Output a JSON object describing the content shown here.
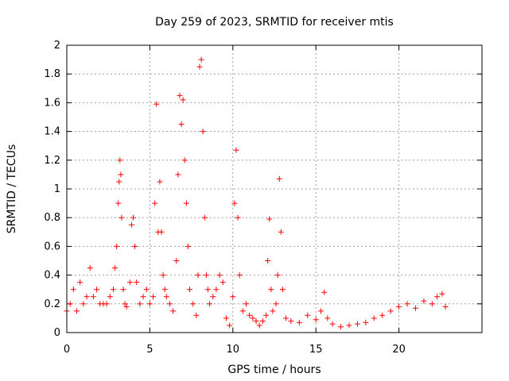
{
  "chart_data": {
    "type": "scatter",
    "title": "Day 259 of 2023, SRMTID for receiver mtis",
    "xlabel": "GPS time / hours",
    "ylabel": "SRMTID / TECUs",
    "xlim": [
      0,
      25
    ],
    "ylim": [
      0,
      2
    ],
    "x_ticks": [
      0,
      5,
      10,
      15,
      20
    ],
    "x_tick_labels": [
      "0",
      "5",
      "10",
      "15",
      "20"
    ],
    "y_ticks": [
      0,
      0.2,
      0.4,
      0.6,
      0.8,
      1,
      1.2,
      1.4,
      1.6,
      1.8,
      2
    ],
    "y_tick_labels": [
      "0",
      "0.2",
      "0.4",
      "0.6",
      "0.8",
      "1",
      "1.2",
      "1.4",
      "1.6",
      "1.8",
      "2"
    ],
    "grid": true,
    "marker": "plus",
    "color": "#ff0000",
    "series": [
      {
        "name": "SRMTID",
        "x": [
          0.0,
          0.2,
          0.4,
          0.6,
          0.8,
          1.0,
          1.2,
          1.4,
          1.6,
          1.8,
          2.0,
          2.2,
          2.4,
          2.6,
          2.8,
          2.9,
          3.0,
          3.1,
          3.15,
          3.2,
          3.25,
          3.3,
          3.4,
          3.5,
          3.6,
          3.8,
          3.9,
          4.0,
          4.1,
          4.2,
          4.4,
          4.6,
          4.8,
          5.0,
          5.2,
          5.3,
          5.4,
          5.5,
          5.6,
          5.7,
          5.8,
          5.9,
          6.0,
          6.2,
          6.4,
          6.6,
          6.7,
          6.8,
          6.9,
          7.0,
          7.1,
          7.2,
          7.3,
          7.4,
          7.6,
          7.8,
          7.9,
          8.0,
          8.1,
          8.2,
          8.3,
          8.4,
          8.5,
          8.6,
          8.8,
          9.0,
          9.2,
          9.4,
          9.6,
          9.8,
          10.0,
          10.1,
          10.2,
          10.3,
          10.4,
          10.6,
          10.8,
          11.0,
          11.2,
          11.4,
          11.6,
          11.8,
          12.0,
          12.1,
          12.2,
          12.3,
          12.4,
          12.6,
          12.7,
          12.8,
          12.9,
          13.0,
          13.2,
          13.5,
          14.0,
          14.5,
          15.0,
          15.3,
          15.5,
          15.7,
          16.0,
          16.5,
          17.0,
          17.5,
          18.0,
          18.5,
          19.0,
          19.5,
          20.0,
          20.5,
          21.0,
          21.5,
          22.0,
          22.3,
          22.6,
          22.8
        ],
        "y": [
          0.15,
          0.2,
          0.3,
          0.15,
          0.35,
          0.2,
          0.25,
          0.45,
          0.25,
          0.3,
          0.2,
          0.2,
          0.2,
          0.25,
          0.3,
          0.45,
          0.6,
          0.9,
          1.05,
          1.2,
          1.1,
          0.8,
          0.3,
          0.2,
          0.18,
          0.35,
          0.75,
          0.8,
          0.6,
          0.35,
          0.2,
          0.25,
          0.3,
          0.2,
          0.25,
          0.9,
          1.59,
          0.7,
          1.05,
          0.7,
          0.4,
          0.3,
          0.25,
          0.2,
          0.15,
          0.5,
          1.1,
          1.65,
          1.45,
          1.62,
          1.2,
          0.9,
          0.6,
          0.3,
          0.2,
          0.12,
          0.4,
          1.85,
          1.9,
          1.4,
          0.8,
          0.4,
          0.3,
          0.2,
          0.25,
          0.3,
          0.4,
          0.35,
          0.1,
          0.05,
          0.25,
          0.9,
          1.27,
          0.8,
          0.4,
          0.15,
          0.2,
          0.12,
          0.1,
          0.08,
          0.05,
          0.08,
          0.12,
          0.5,
          0.79,
          0.3,
          0.15,
          0.2,
          0.4,
          1.07,
          0.7,
          0.3,
          0.1,
          0.08,
          0.07,
          0.12,
          0.09,
          0.15,
          0.28,
          0.1,
          0.06,
          0.04,
          0.05,
          0.06,
          0.07,
          0.1,
          0.12,
          0.15,
          0.18,
          0.2,
          0.17,
          0.22,
          0.2,
          0.25,
          0.27,
          0.18
        ]
      }
    ]
  }
}
